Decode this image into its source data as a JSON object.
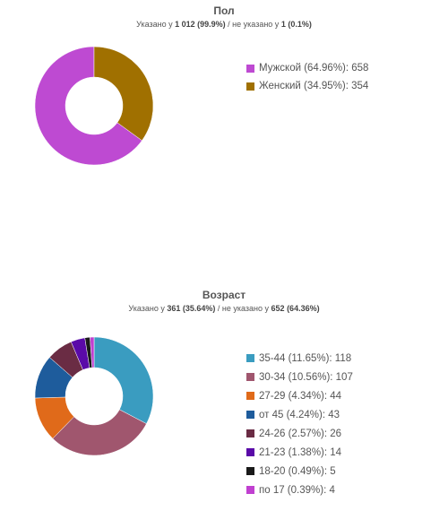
{
  "gender": {
    "title": "Пол",
    "subtitle": {
      "prefix": "Указано у ",
      "specified": "1 012 (99.9%)",
      "middle": " / не указано у ",
      "unspecified": "1 (0.1%)"
    }
  },
  "age": {
    "title": "Возраст",
    "subtitle": {
      "prefix": "Указано у ",
      "specified": "361 (35.64%)",
      "middle": " / не указано у ",
      "unspecified": "652 (64.36%)"
    }
  },
  "chart_data": [
    {
      "type": "pie",
      "donut": true,
      "title": "Пол",
      "legend_position": "right",
      "categories": [
        "Мужской (64.96%): 658",
        "Женский (34.95%): 354"
      ],
      "values": [
        658,
        354
      ],
      "colors": [
        "#be4ad2",
        "#a07000"
      ]
    },
    {
      "type": "pie",
      "donut": true,
      "title": "Возраст",
      "legend_position": "right",
      "categories": [
        "35-44 (11.65%): 118",
        "30-34 (10.56%): 107",
        "27-29 (4.34%): 44",
        "от 45 (4.24%): 43",
        "24-26 (2.57%): 26",
        "21-23 (1.38%): 14",
        "18-20 (0.49%): 5",
        "по 17 (0.39%): 4"
      ],
      "values": [
        118,
        107,
        44,
        43,
        26,
        14,
        5,
        4
      ],
      "colors": [
        "#3a9cc0",
        "#a0566e",
        "#e06a1a",
        "#1e5c9c",
        "#6a2c44",
        "#5a0aa8",
        "#1a1a1a",
        "#c040d0"
      ]
    }
  ]
}
